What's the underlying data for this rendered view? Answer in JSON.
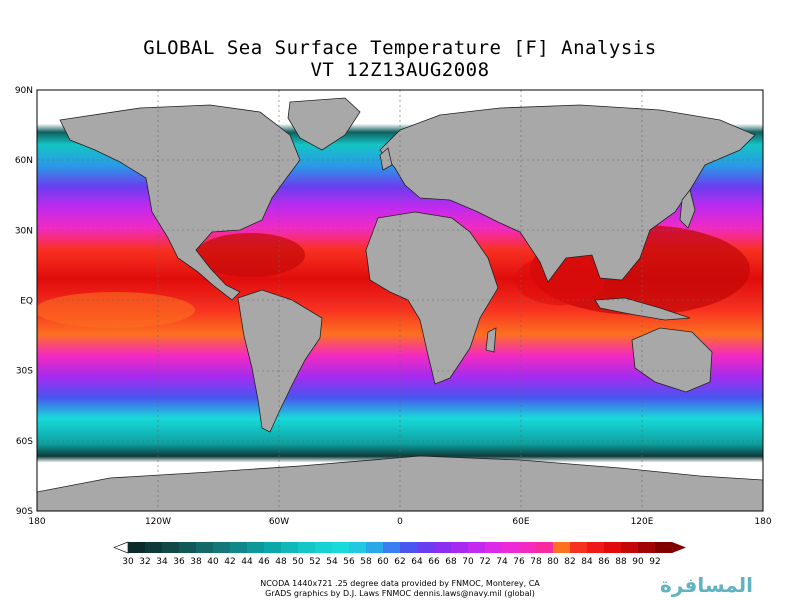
{
  "title": {
    "line1": "GLOBAL Sea Surface Temperature [F] Analysis",
    "line2": "VT 12Z13AUG2008"
  },
  "chart_data": {
    "type": "heatmap",
    "projection": "equirectangular",
    "lon_range": [
      -180,
      180
    ],
    "lat_range": [
      -90,
      90
    ],
    "lat_ticks": [
      "90N",
      "60N",
      "30N",
      "EQ",
      "30S",
      "60S",
      "90S"
    ],
    "lon_ticks": [
      "180",
      "120W",
      "60W",
      "0",
      "60E",
      "120E",
      "180"
    ],
    "grid": true,
    "colorbar": {
      "labels": [
        "30",
        "32",
        "34",
        "36",
        "38",
        "40",
        "42",
        "44",
        "46",
        "48",
        "50",
        "52",
        "54",
        "56",
        "58",
        "60",
        "62",
        "64",
        "66",
        "68",
        "70",
        "72",
        "74",
        "76",
        "78",
        "80",
        "82",
        "84",
        "86",
        "88",
        "90",
        "92"
      ],
      "colors": [
        "#0b2a2a",
        "#0f3a3a",
        "#114848",
        "#125858",
        "#136868",
        "#127878",
        "#10888a",
        "#0e9898",
        "#0ca8a8",
        "#10b8b8",
        "#14c6c6",
        "#16d2d2",
        "#18dada",
        "#20c8e0",
        "#2aa8e8",
        "#3a7ef0",
        "#4a55f0",
        "#6a3ef0",
        "#8a2ef0",
        "#a82af0",
        "#c22aee",
        "#dc2ae8",
        "#ec2ad8",
        "#f42ac0",
        "#f82aa0",
        "#fc7020",
        "#f83020",
        "#f01818",
        "#e00c0c",
        "#c40808",
        "#a00404",
        "#800000"
      ]
    },
    "land_color": "#a8a8a8",
    "ice_color": "#ffffff"
  },
  "footer": {
    "line1": "NCODA 1440x721 .25 degree data provided by FNMOC, Monterey, CA",
    "line2": "GrADS graphics by D.J. Laws FNMOC dennis.laws@navy.mil (global)"
  },
  "watermark": "المسافرة"
}
